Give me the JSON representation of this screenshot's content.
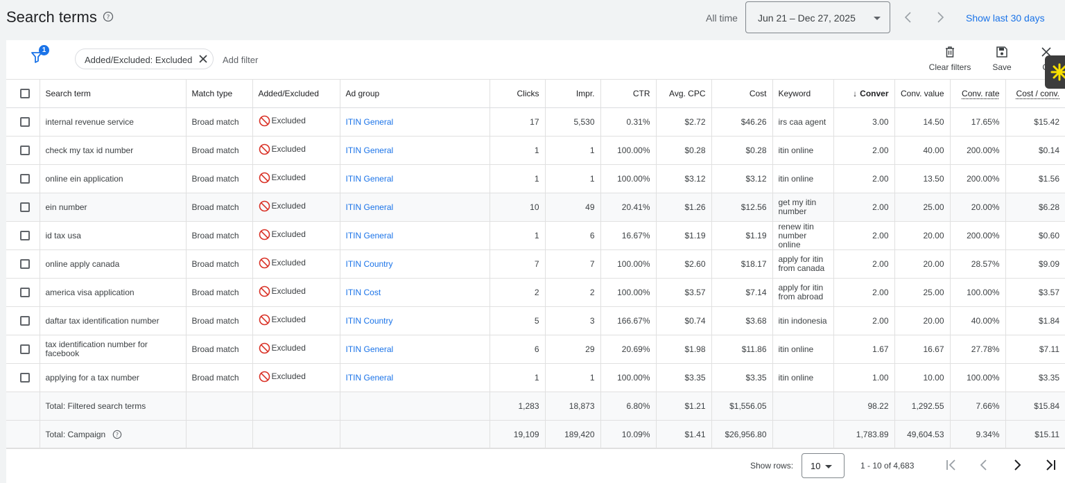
{
  "header": {
    "title": "Search terms",
    "all_time": "All time",
    "date_range": "Jun 21 – Dec 27, 2025",
    "show_last": "Show last 30 days"
  },
  "filters": {
    "badge_count": "1",
    "chip_label": "Added/Excluded: Excluded",
    "add_filter": "Add filter",
    "clear_filters": "Clear filters",
    "save": "Save",
    "close": "Cl"
  },
  "columns": [
    "Search term",
    "Match type",
    "Added/Excluded",
    "Ad group",
    "Clicks",
    "Impr.",
    "CTR",
    "Avg. CPC",
    "Cost",
    "Keyword",
    "Conver",
    "Conv. value",
    "Conv. rate",
    "Cost / conv."
  ],
  "rows": [
    {
      "term": "internal revenue service",
      "match": "Broad match",
      "status": "Excluded",
      "adgroup": "ITIN General",
      "clicks": "17",
      "impr": "5,530",
      "ctr": "0.31%",
      "cpc": "$2.72",
      "cost": "$46.26",
      "keyword": "irs caa agent",
      "conv": "3.00",
      "value": "14.50",
      "rate": "17.65%",
      "cpa": "$15.42"
    },
    {
      "term": "check my tax id number",
      "match": "Broad match",
      "status": "Excluded",
      "adgroup": "ITIN General",
      "clicks": "1",
      "impr": "1",
      "ctr": "100.00%",
      "cpc": "$0.28",
      "cost": "$0.28",
      "keyword": "itin online",
      "conv": "2.00",
      "value": "40.00",
      "rate": "200.00%",
      "cpa": "$0.14"
    },
    {
      "term": "online ein application",
      "match": "Broad match",
      "status": "Excluded",
      "adgroup": "ITIN General",
      "clicks": "1",
      "impr": "1",
      "ctr": "100.00%",
      "cpc": "$3.12",
      "cost": "$3.12",
      "keyword": "itin online",
      "conv": "2.00",
      "value": "13.50",
      "rate": "200.00%",
      "cpa": "$1.56"
    },
    {
      "term": "ein number",
      "match": "Broad match",
      "status": "Excluded",
      "adgroup": "ITIN General",
      "clicks": "10",
      "impr": "49",
      "ctr": "20.41%",
      "cpc": "$1.26",
      "cost": "$12.56",
      "keyword": "get my itin number",
      "conv": "2.00",
      "value": "25.00",
      "rate": "20.00%",
      "cpa": "$6.28"
    },
    {
      "term": "id tax usa",
      "match": "Broad match",
      "status": "Excluded",
      "adgroup": "ITIN General",
      "clicks": "1",
      "impr": "6",
      "ctr": "16.67%",
      "cpc": "$1.19",
      "cost": "$1.19",
      "keyword": "renew itin number online",
      "conv": "2.00",
      "value": "20.00",
      "rate": "200.00%",
      "cpa": "$0.60"
    },
    {
      "term": "online apply canada",
      "match": "Broad match",
      "status": "Excluded",
      "adgroup": "ITIN Country",
      "clicks": "7",
      "impr": "7",
      "ctr": "100.00%",
      "cpc": "$2.60",
      "cost": "$18.17",
      "keyword": "apply for itin from canada",
      "conv": "2.00",
      "value": "20.00",
      "rate": "28.57%",
      "cpa": "$9.09"
    },
    {
      "term": "america visa application",
      "match": "Broad match",
      "status": "Excluded",
      "adgroup": "ITIN Cost",
      "clicks": "2",
      "impr": "2",
      "ctr": "100.00%",
      "cpc": "$3.57",
      "cost": "$7.14",
      "keyword": "apply for itin from abroad",
      "conv": "2.00",
      "value": "25.00",
      "rate": "100.00%",
      "cpa": "$3.57"
    },
    {
      "term": "daftar tax identification number",
      "match": "Broad match",
      "status": "Excluded",
      "adgroup": "ITIN Country",
      "clicks": "5",
      "impr": "3",
      "ctr": "166.67%",
      "cpc": "$0.74",
      "cost": "$3.68",
      "keyword": "itin indonesia",
      "conv": "2.00",
      "value": "20.00",
      "rate": "40.00%",
      "cpa": "$1.84"
    },
    {
      "term": "tax identification number for facebook",
      "match": "Broad match",
      "status": "Excluded",
      "adgroup": "ITIN General",
      "clicks": "6",
      "impr": "29",
      "ctr": "20.69%",
      "cpc": "$1.98",
      "cost": "$11.86",
      "keyword": "itin online",
      "conv": "1.67",
      "value": "16.67",
      "rate": "27.78%",
      "cpa": "$7.11"
    },
    {
      "term": "applying for a tax number",
      "match": "Broad match",
      "status": "Excluded",
      "adgroup": "ITIN General",
      "clicks": "1",
      "impr": "1",
      "ctr": "100.00%",
      "cpc": "$3.35",
      "cost": "$3.35",
      "keyword": "itin online",
      "conv": "1.00",
      "value": "10.00",
      "rate": "100.00%",
      "cpa": "$3.35"
    }
  ],
  "totals": [
    {
      "label": "Total: Filtered search terms",
      "clicks": "1,283",
      "impr": "18,873",
      "ctr": "6.80%",
      "cpc": "$1.21",
      "cost": "$1,556.05",
      "conv": "98.22",
      "value": "1,292.55",
      "rate": "7.66%",
      "cpa": "$15.84"
    },
    {
      "label": "Total: Campaign",
      "clicks": "19,109",
      "impr": "189,420",
      "ctr": "10.09%",
      "cpc": "$1.41",
      "cost": "$26,956.80",
      "conv": "1,783.89",
      "value": "49,604.53",
      "rate": "9.34%",
      "cpa": "$15.11"
    }
  ],
  "footer": {
    "show_rows": "Show rows:",
    "rows_value": "10",
    "range": "1 - 10 of 4,683"
  },
  "colors": {
    "accent": "#1a73e8",
    "excluded_icon": "#d93025"
  }
}
